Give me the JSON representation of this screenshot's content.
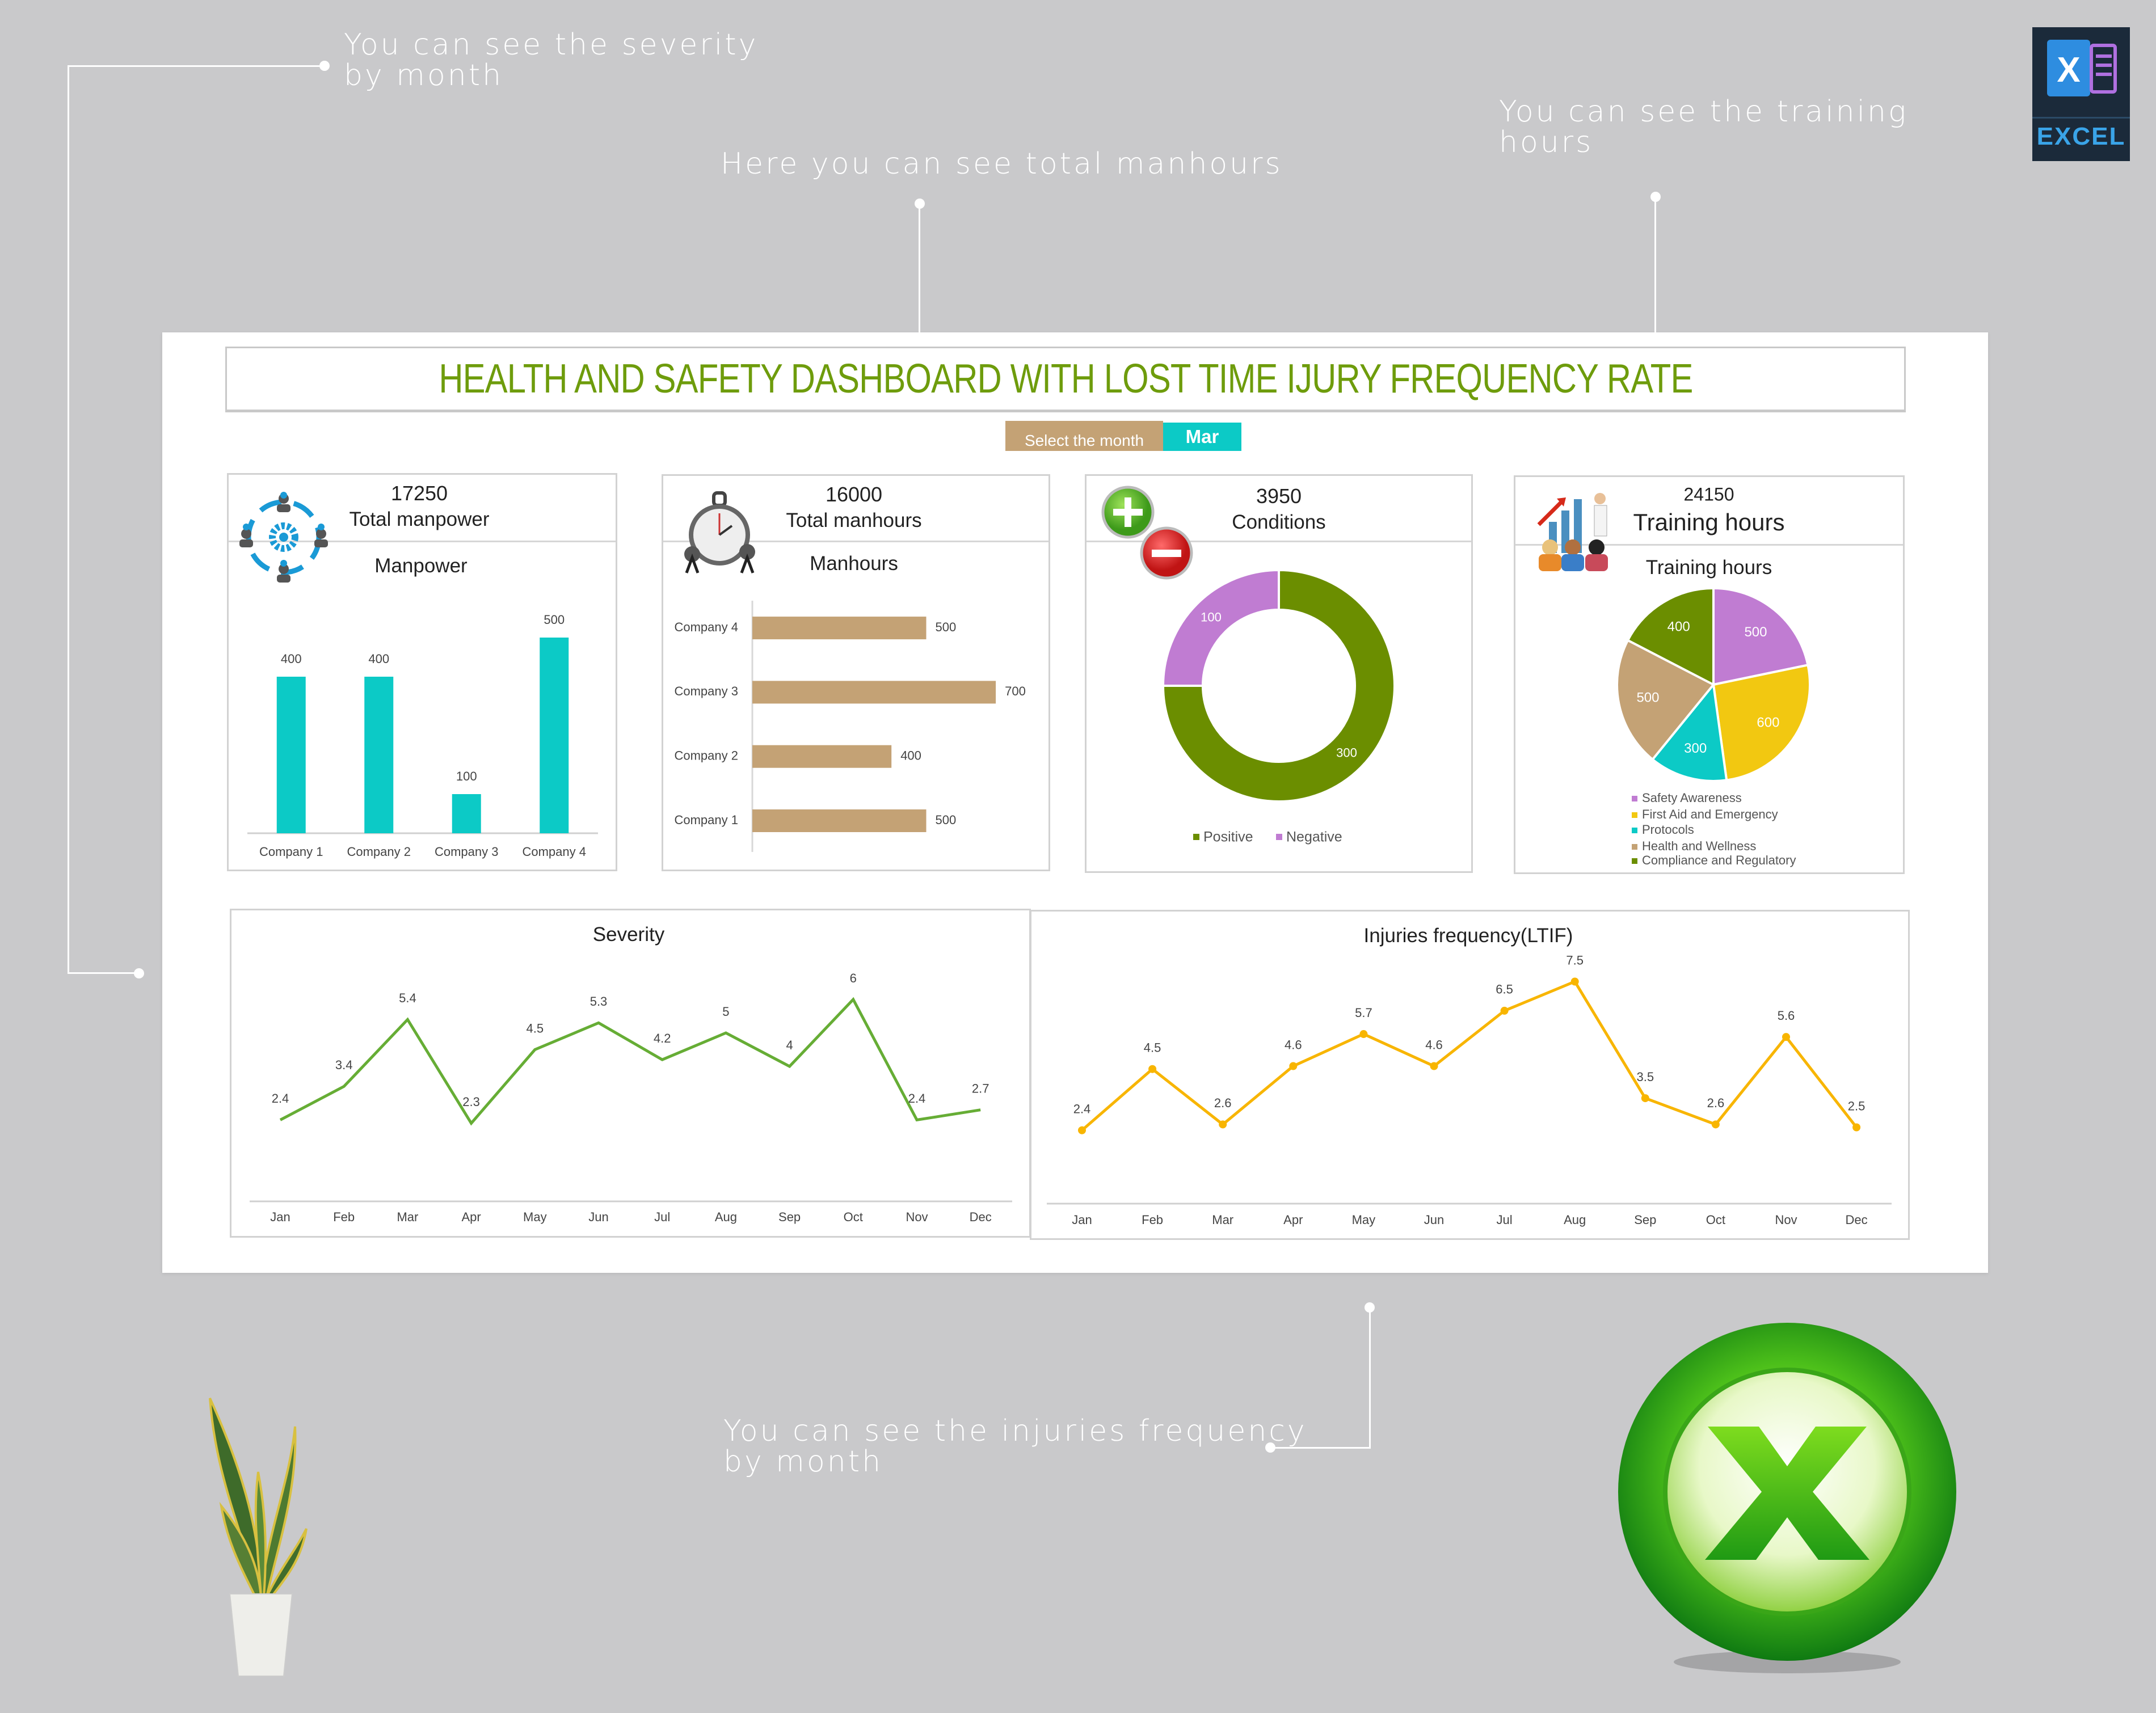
{
  "annotations": {
    "severity": [
      "You can see the severity",
      "by month"
    ],
    "manhours": [
      "Here you can see total manhours"
    ],
    "training": [
      "You can see the training",
      "hours"
    ],
    "injuries": [
      "You can see the injuries frequency",
      "by month"
    ]
  },
  "logo": {
    "excel_text": "EXCEL",
    "icon": "excel-icon"
  },
  "dashboard": {
    "title": "HEALTH AND SAFETY DASHBOARD WITH LOST TIME IJURY FREQUENCY RATE",
    "month_selector": {
      "label": "Select the month",
      "value": "Mar"
    },
    "cards": {
      "manpower": {
        "total": "17250",
        "total_label": "Total manpower",
        "chart_title": "Manpower",
        "icon": "team-gear-icon"
      },
      "manhours": {
        "total": "16000",
        "total_label": "Total manhours",
        "chart_title": "Manhours",
        "icon": "stopwatch-icon"
      },
      "conditions": {
        "total": "3950",
        "total_label": "Conditions",
        "icon": "plus-minus-icon"
      },
      "training": {
        "total": "24150",
        "total_label": "Training hours",
        "chart_title": "Training hours",
        "icon": "training-presentation-icon"
      }
    }
  },
  "colors": {
    "title_green": "#6e9c0c",
    "teal": "#0ccac6",
    "tan": "#c4a275",
    "green": "#6b8e00",
    "purple": "#c07cd2",
    "yellow": "#f2c811",
    "severity_line": "#66ad35",
    "ltif_line": "#f8b500"
  },
  "chart_data": [
    {
      "type": "bar",
      "orientation": "vertical",
      "categories": [
        "Company 1",
        "Company 2",
        "Company 3",
        "Company 4"
      ],
      "values": [
        400,
        400,
        100,
        500
      ],
      "title": "Manpower",
      "color": "#0ccac6",
      "data_labels": true
    },
    {
      "type": "bar",
      "orientation": "horizontal",
      "categories": [
        "Company 1",
        "Company 2",
        "Company 3",
        "Company 4"
      ],
      "values": [
        500,
        400,
        700,
        500
      ],
      "title": "Manhours",
      "color": "#c4a275",
      "data_labels": true
    },
    {
      "type": "pie",
      "variant": "donut",
      "labels": [
        "Positive",
        "Negative"
      ],
      "values": [
        300,
        100
      ],
      "colors": [
        "#6b8e00",
        "#c07cd2"
      ],
      "legend": "bottom"
    },
    {
      "type": "pie",
      "labels": [
        "Safety Awareness",
        "First Aid and Emergency",
        "Protocols",
        "Health and Wellness",
        "Compliance and Regulatory"
      ],
      "values": [
        500,
        600,
        300,
        500,
        400
      ],
      "colors": [
        "#c07cd2",
        "#f2c811",
        "#0ccac6",
        "#c4a275",
        "#6b8e00"
      ],
      "title": "Training hours",
      "legend": "bottom"
    },
    {
      "type": "line",
      "title": "Severity",
      "categories": [
        "Jan",
        "Feb",
        "Mar",
        "Apr",
        "May",
        "Jun",
        "Jul",
        "Aug",
        "Sep",
        "Oct",
        "Nov",
        "Dec"
      ],
      "values": [
        2.4,
        3.4,
        5.4,
        2.3,
        4.5,
        5.3,
        4.2,
        5,
        4,
        6,
        2.4,
        2.7
      ],
      "color": "#66ad35",
      "markers": false
    },
    {
      "type": "line",
      "title": "Injuries frequency(LTIF)",
      "categories": [
        "Jan",
        "Feb",
        "Mar",
        "Apr",
        "May",
        "Jun",
        "Jul",
        "Aug",
        "Sep",
        "Oct",
        "Nov",
        "Dec"
      ],
      "values": [
        2.4,
        4.5,
        2.6,
        4.6,
        5.7,
        4.6,
        6.5,
        7.5,
        3.5,
        2.6,
        5.6,
        2.5
      ],
      "color": "#f8b500",
      "markers": true
    }
  ]
}
